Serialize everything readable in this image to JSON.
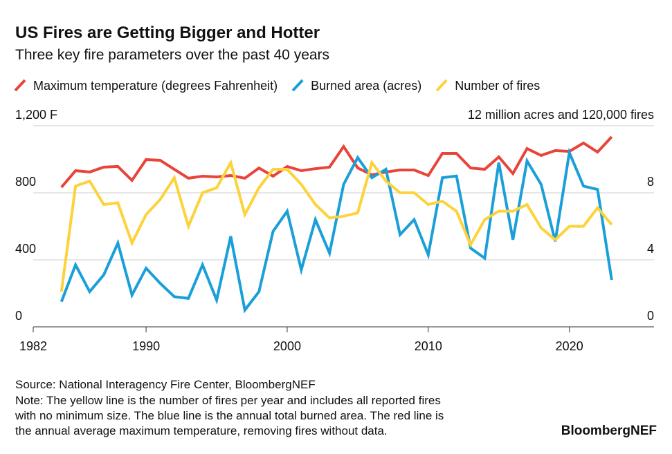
{
  "chart_data": {
    "type": "line",
    "title": "US Fires are Getting Bigger and Hotter",
    "subtitle": "Three key fire parameters over the past 40 years",
    "x": [
      1984,
      1985,
      1986,
      1987,
      1988,
      1989,
      1990,
      1991,
      1992,
      1993,
      1994,
      1995,
      1996,
      1997,
      1998,
      1999,
      2000,
      2001,
      2002,
      2003,
      2004,
      2005,
      2006,
      2007,
      2008,
      2009,
      2010,
      2011,
      2012,
      2013,
      2014,
      2015,
      2016,
      2017,
      2018,
      2019,
      2020,
      2021,
      2022,
      2023
    ],
    "series": [
      {
        "name": "Maximum temperature (degrees Fahrenheit)",
        "color": "#e8443a",
        "axis": "y",
        "values": [
          833,
          932,
          924,
          953,
          957,
          874,
          998,
          994,
          940,
          887,
          899,
          895,
          903,
          887,
          948,
          899,
          957,
          932,
          944,
          953,
          1076,
          948,
          907,
          924,
          936,
          936,
          903,
          1035,
          1035,
          948,
          940,
          1014,
          915,
          1064,
          1023,
          1052,
          1047,
          1097,
          1043,
          1134
        ]
      },
      {
        "name": "Burned area (acres)",
        "color": "#1a9fd9",
        "axis": "y2",
        "values": [
          1.5,
          3.7,
          2.1,
          3.1,
          5.0,
          1.9,
          3.5,
          2.6,
          1.8,
          1.7,
          3.7,
          1.6,
          5.4,
          1.0,
          2.1,
          5.7,
          6.9,
          3.4,
          6.4,
          4.4,
          8.5,
          10.1,
          8.9,
          9.4,
          5.5,
          6.4,
          4.3,
          8.9,
          9.0,
          4.7,
          4.1,
          9.8,
          5.2,
          9.9,
          8.5,
          5.1,
          10.4,
          8.4,
          8.2,
          2.8
        ]
      },
      {
        "name": "Number of fires",
        "color": "#fdd23a",
        "axis": "y2",
        "values": [
          2.1,
          8.4,
          8.7,
          7.3,
          7.4,
          5.0,
          6.7,
          7.6,
          8.9,
          6.0,
          8.0,
          8.3,
          9.8,
          6.7,
          8.3,
          9.4,
          9.4,
          8.5,
          7.3,
          6.5,
          6.6,
          6.8,
          9.8,
          8.7,
          8.0,
          8.0,
          7.3,
          7.5,
          6.9,
          4.9,
          6.4,
          6.9,
          6.9,
          7.3,
          5.9,
          5.2,
          6.0,
          6.0,
          7.1,
          6.1
        ]
      }
    ],
    "xlim": [
      1982,
      2026
    ],
    "xticks": [
      1982,
      1990,
      2000,
      2010,
      2020
    ],
    "ylim": [
      0,
      1200
    ],
    "yticks": [
      0,
      400,
      800,
      {
        "value": 1200,
        "label": "1,200 F"
      }
    ],
    "y2lim": [
      0,
      12
    ],
    "y2ticks": [
      0,
      4,
      8,
      {
        "value": 12,
        "label": "12 million acres and 120,000 fires"
      }
    ],
    "grid": true,
    "source": "Source: National Interagency Fire Center, BloombergNEF",
    "note": [
      "Note: The yellow line is the number of fires per year and includes all reported fires",
      "with no minimum size. The blue line is the annual total burned area. The red line is",
      "the annual average maximum temperature, removing fires without data."
    ],
    "brand": "BloombergNEF"
  }
}
